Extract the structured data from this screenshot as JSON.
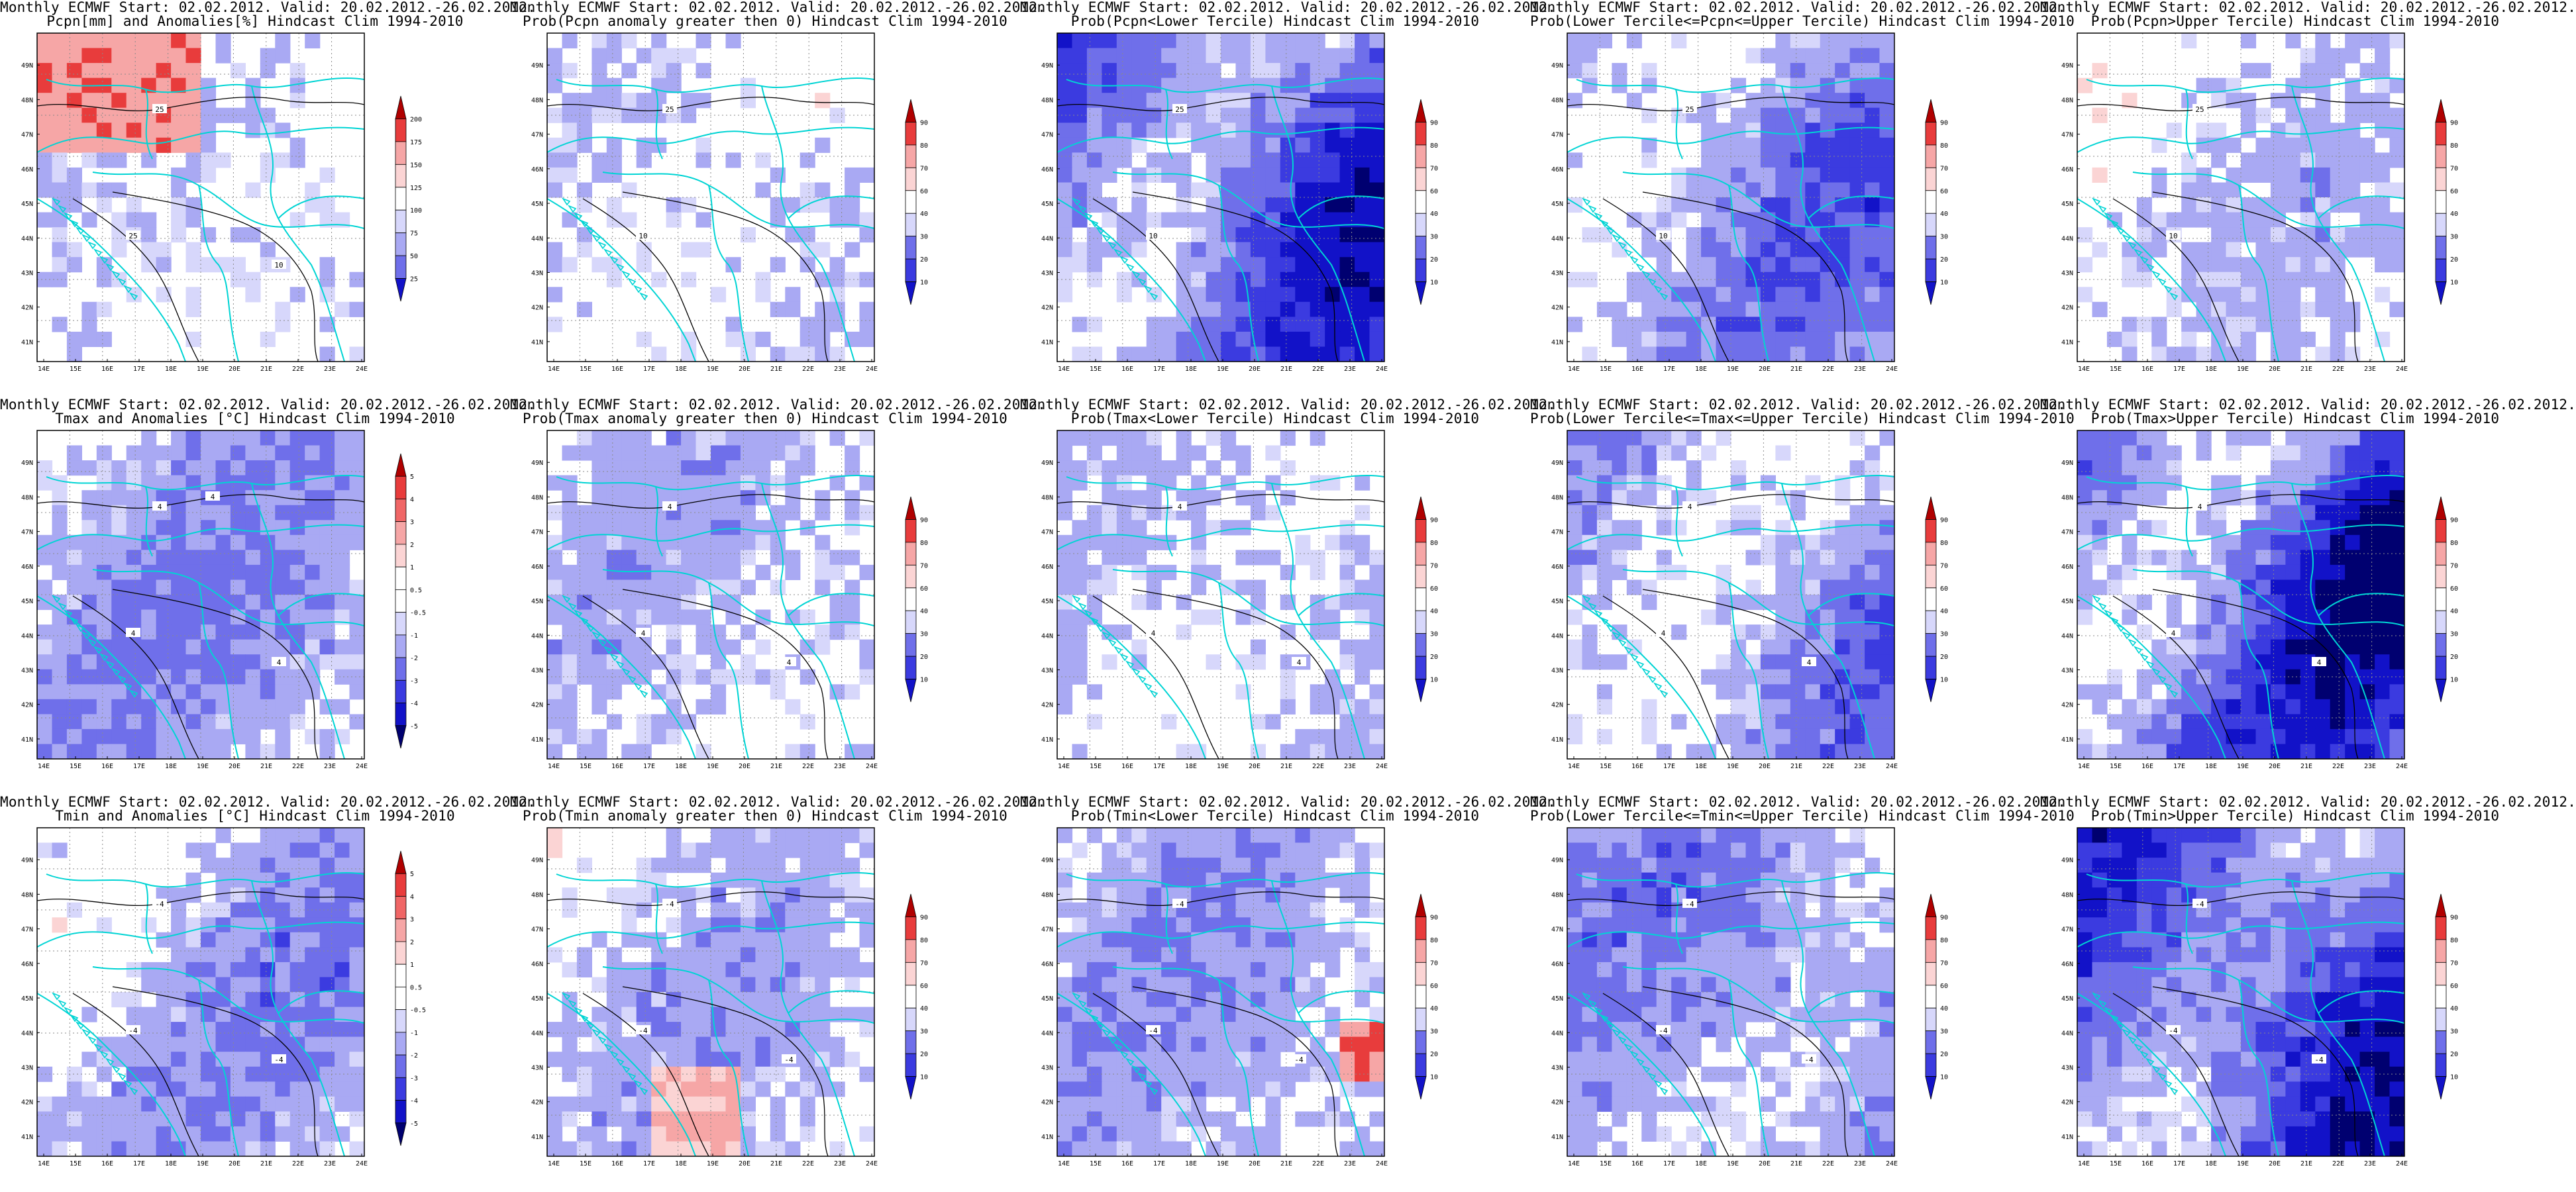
{
  "figure": {
    "latitude_labels": [
      "41N",
      "42N",
      "43N",
      "44N",
      "45N",
      "46N",
      "47N",
      "48N",
      "49N"
    ],
    "longitude_labels": [
      "14E",
      "15E",
      "16E",
      "17E",
      "18E",
      "19E",
      "20E",
      "21E",
      "22E",
      "23E",
      "24E"
    ],
    "anomaly_pcpn_levels": [
      "200",
      "175",
      "150",
      "125",
      "100",
      "75",
      "50",
      "25"
    ],
    "anomaly_temp_levels": [
      "5",
      "4",
      "3",
      "2",
      "1",
      "0.5",
      "-0.5",
      "-1",
      "-2",
      "-3",
      "-4",
      "-5"
    ],
    "prob_levels": [
      "90",
      "80",
      "70",
      "60",
      "40",
      "30",
      "20",
      "10"
    ],
    "colors": {
      "red_dark": "#b00000",
      "red": "#e83c3c",
      "red_light": "#f6a6a6",
      "red_pale": "#fbd4d4",
      "blue_pale": "#d7d7fb",
      "blue_light": "#a9a9f3",
      "blue": "#6f6fea",
      "blue_mid": "#3b3be0",
      "blue_dark": "#1212c8",
      "navy": "#000070",
      "border": "#00d4d4",
      "contour": "#000000"
    }
  },
  "panels": [
    {
      "title1": "Monthly ECMWF Start: 02.02.2012. Valid: 20.02.2012.-26.02.2012.",
      "title2": "Pcpn[mm] and Anomalies[%] Hindcast Clim 1994-2010",
      "kind": "anom_pcpn",
      "intensity": 0.15,
      "contour_labels": [
        "25",
        "25",
        "10"
      ]
    },
    {
      "title1": "Monthly ECMWF Start: 02.02.2012. Valid: 20.02.2012.-26.02.2012.",
      "title2": "Prob(Pcpn anomaly greater then 0) Hindcast Clim 1994-2010",
      "kind": "prob",
      "intensity": 0.18,
      "contour_labels": [
        "25",
        "10"
      ]
    },
    {
      "title1": "Monthly ECMWF Start: 02.02.2012. Valid: 20.02.2012.-26.02.2012.",
      "title2": "Prob(Pcpn<Lower Tercile) Hindcast Clim 1994-2010",
      "kind": "prob",
      "intensity": 0.75,
      "contour_labels": [
        "25",
        "10"
      ]
    },
    {
      "title1": "Monthly ECMWF Start: 02.02.2012. Valid: 20.02.2012.-26.02.2012.",
      "title2": "Prob(Lower Tercile<=Pcpn<=Upper Tercile) Hindcast Clim 1994-2010",
      "kind": "prob",
      "intensity": 0.45,
      "contour_labels": [
        "25",
        "10"
      ]
    },
    {
      "title1": "Monthly ECMWF Start: 02.02.2012. Valid: 20.02.2012.-26.02.2012.",
      "title2": "Prob(Pcpn>Upper Tercile) Hindcast Clim 1994-2010",
      "kind": "prob",
      "intensity": 0.2,
      "contour_labels": [
        "25",
        "10"
      ]
    },
    {
      "title1": "Monthly ECMWF Start: 02.02.2012. Valid: 20.02.2012.-26.02.2012.",
      "title2": "Tmax and Anomalies [°C] Hindcast Clim 1994-2010",
      "kind": "anom_temp",
      "intensity": 0.4,
      "contour_labels": [
        "4",
        "4",
        "4",
        "4"
      ]
    },
    {
      "title1": "Monthly ECMWF Start: 02.02.2012. Valid: 20.02.2012.-26.02.2012.",
      "title2": "Prob(Tmax anomaly greater then 0) Hindcast Clim 1994-2010",
      "kind": "prob",
      "intensity": 0.28,
      "contour_labels": [
        "4",
        "4",
        "4"
      ]
    },
    {
      "title1": "Monthly ECMWF Start: 02.02.2012. Valid: 20.02.2012.-26.02.2012.",
      "title2": "Prob(Tmax<Lower Tercile) Hindcast Clim 1994-2010",
      "kind": "prob",
      "intensity": 0.25,
      "contour_labels": [
        "4",
        "4",
        "4"
      ]
    },
    {
      "title1": "Monthly ECMWF Start: 02.02.2012. Valid: 20.02.2012.-26.02.2012.",
      "title2": "Prob(Lower Tercile<=Tmax<=Upper Tercile) Hindcast Clim 1994-2010",
      "kind": "prob",
      "intensity": 0.4,
      "contour_labels": [
        "4",
        "4",
        "4"
      ]
    },
    {
      "title1": "Monthly ECMWF Start: 02.02.2012. Valid: 20.02.2012.-26.02.2012.",
      "title2": "Prob(Tmax>Upper Tercile) Hindcast Clim 1994-2010",
      "kind": "prob",
      "intensity": 0.8,
      "contour_labels": [
        "4",
        "4",
        "4"
      ]
    },
    {
      "title1": "Monthly ECMWF Start: 02.02.2012. Valid: 20.02.2012.-26.02.2012.",
      "title2": "Tmin and Anomalies [°C] Hindcast Clim 1994-2010",
      "kind": "anom_temp",
      "intensity": 0.35,
      "contour_labels": [
        "-4",
        "-4",
        "-4"
      ]
    },
    {
      "title1": "Monthly ECMWF Start: 02.02.2012. Valid: 20.02.2012.-26.02.2012.",
      "title2": "Prob(Tmin anomaly greater then 0) Hindcast Clim 1994-2010",
      "kind": "prob",
      "intensity": 0.25,
      "contour_labels": [
        "-4",
        "-4",
        "-4"
      ]
    },
    {
      "title1": "Monthly ECMWF Start: 02.02.2012. Valid: 20.02.2012.-26.02.2012.",
      "title2": "Prob(Tmin<Lower Tercile) Hindcast Clim 1994-2010",
      "kind": "prob",
      "intensity": 0.35,
      "contour_labels": [
        "-4",
        "-4",
        "-4"
      ]
    },
    {
      "title1": "Monthly ECMWF Start: 02.02.2012. Valid: 20.02.2012.-26.02.2012.",
      "title2": "Prob(Lower Tercile<=Tmin<=Upper Tercile) Hindcast Clim 1994-2010",
      "kind": "prob",
      "intensity": 0.45,
      "contour_labels": [
        "-4",
        "-4",
        "-4"
      ]
    },
    {
      "title1": "Monthly ECMWF Start: 02.02.2012. Valid: 20.02.2012.-26.02.2012.",
      "title2": "Prob(Tmin>Upper Tercile) Hindcast Clim 1994-2010",
      "kind": "prob",
      "intensity": 0.85,
      "contour_labels": [
        "-4",
        "-4",
        "-4"
      ]
    }
  ]
}
